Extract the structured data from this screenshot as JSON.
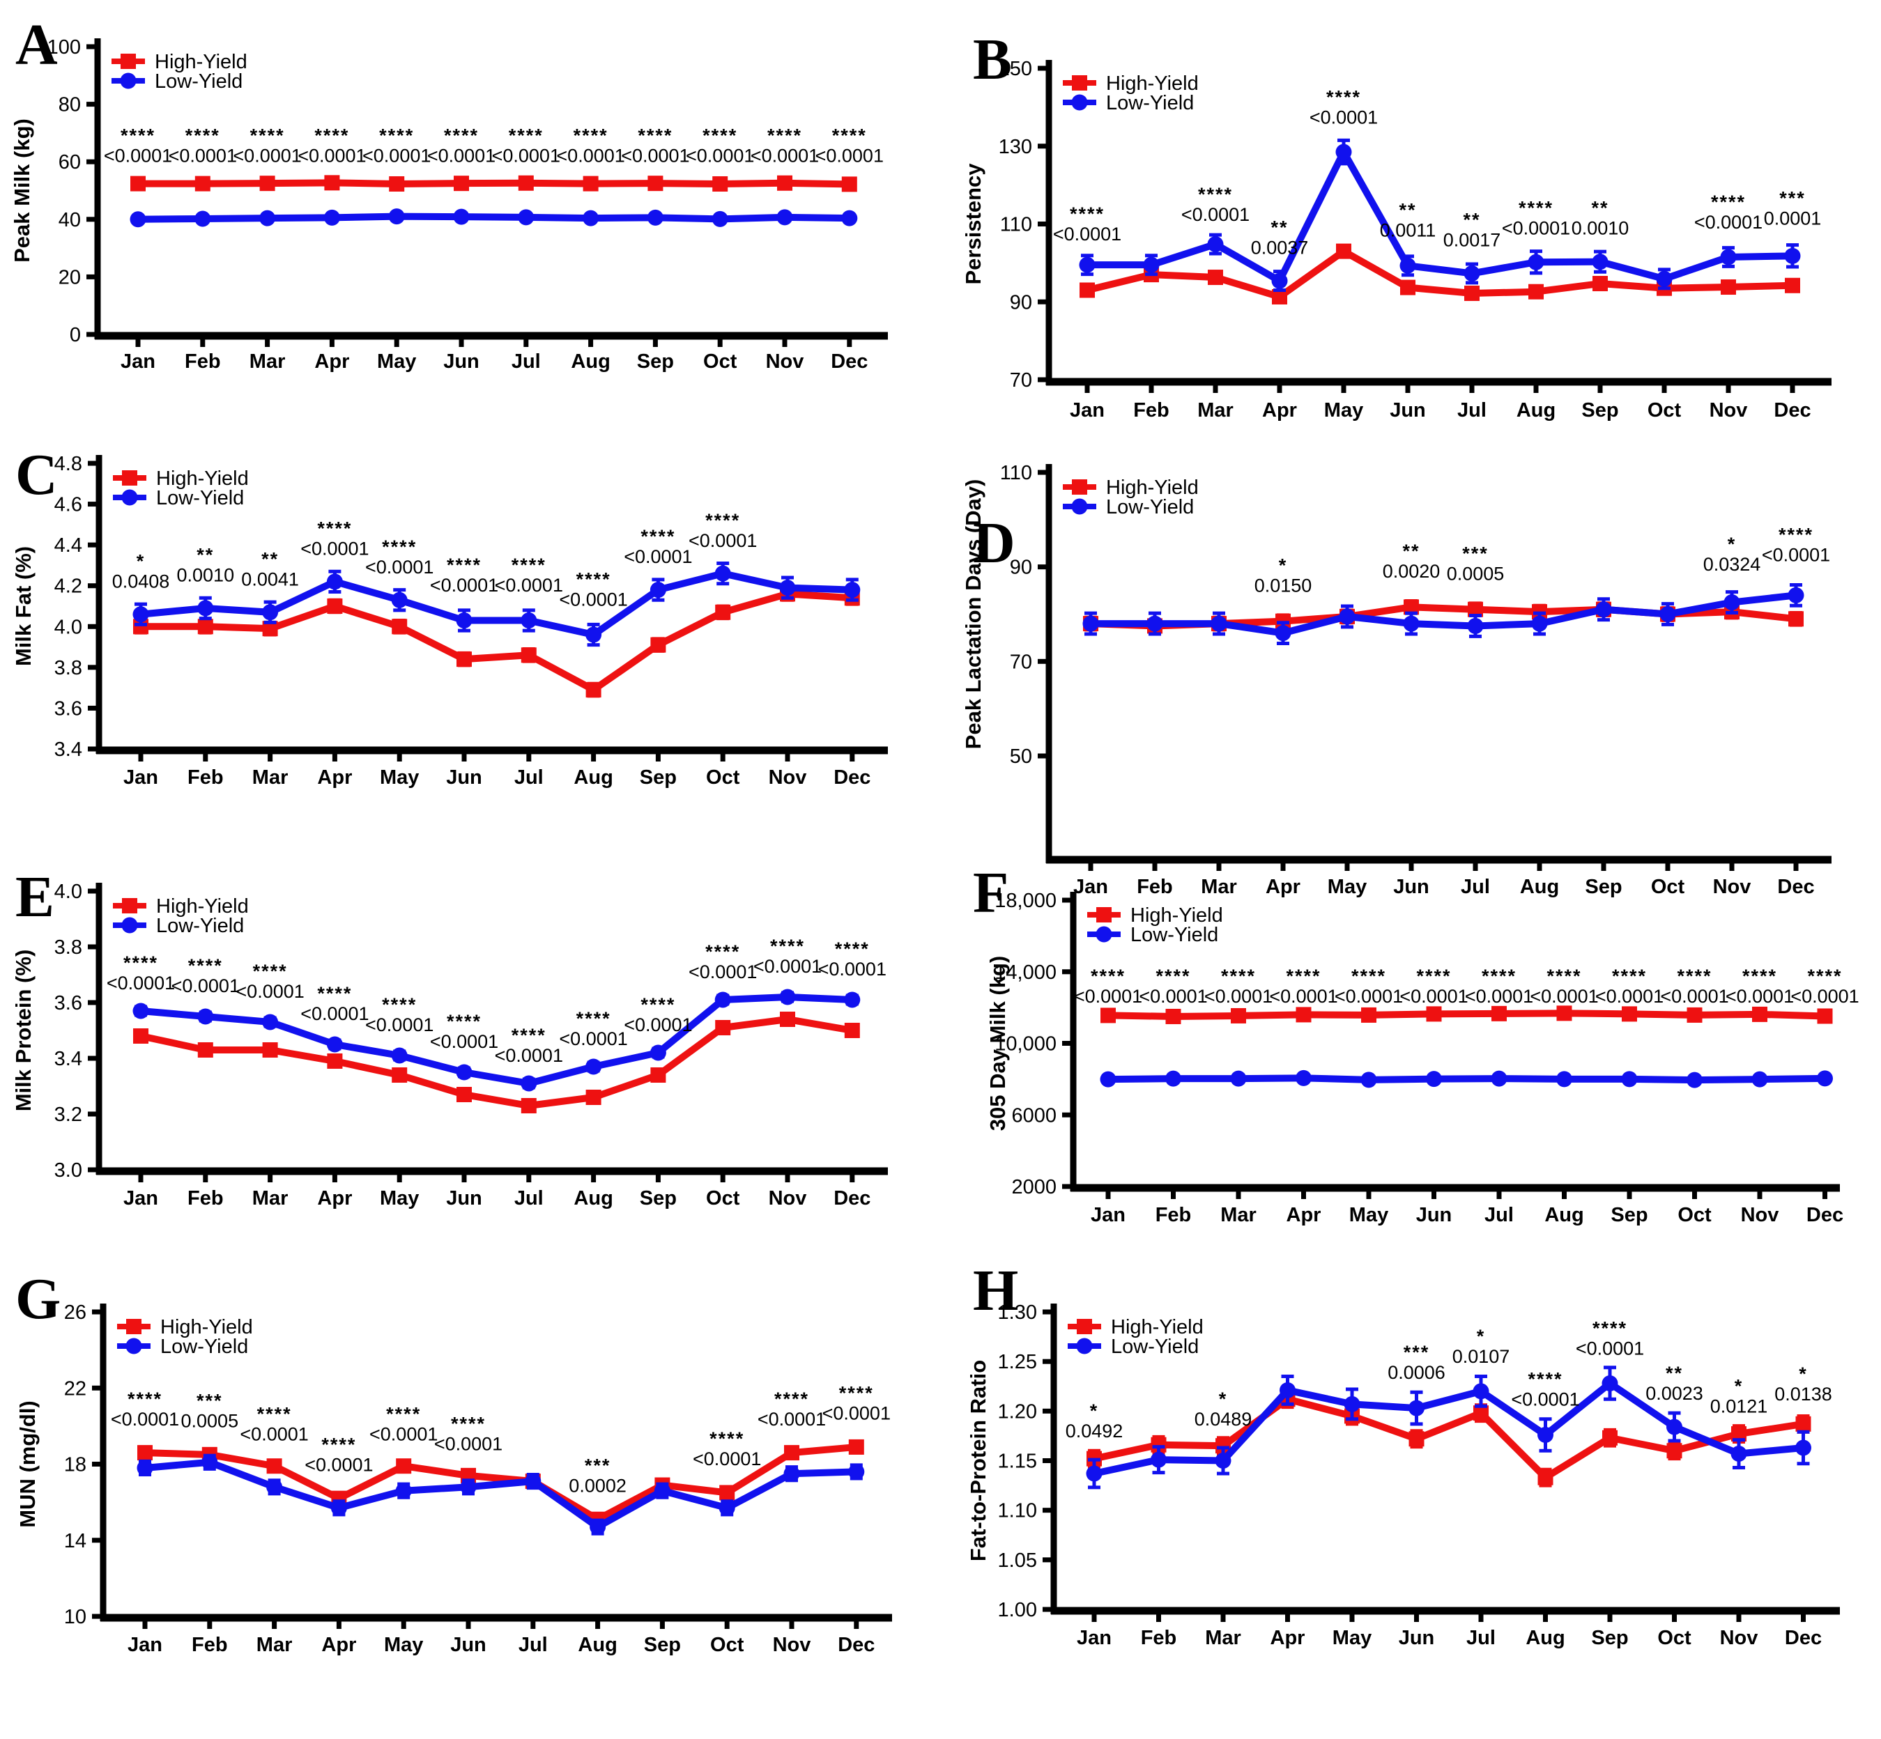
{
  "figure": {
    "legend": {
      "high_label": "High-Yield",
      "low_label": "Low-Yield"
    },
    "colors": {
      "high": "#ee1111",
      "low": "#1111ee",
      "axis": "#000000"
    },
    "months": [
      "Jan",
      "Feb",
      "Mar",
      "Apr",
      "May",
      "Jun",
      "Jul",
      "Aug",
      "Sep",
      "Oct",
      "Nov",
      "Dec"
    ]
  },
  "chart_data": [
    {
      "id": "A",
      "type": "line",
      "ylabel": "Peak Milk (kg)",
      "ylim": [
        0,
        100
      ],
      "yticks": [
        0,
        20,
        40,
        60,
        80,
        100
      ],
      "ytick_labels": [
        "0",
        "20",
        "40",
        "60",
        "80",
        "100"
      ],
      "series": [
        {
          "name": "High-Yield",
          "color": "high",
          "marker": "square",
          "values": [
            52.4,
            52.4,
            52.5,
            52.7,
            52.3,
            52.5,
            52.6,
            52.4,
            52.5,
            52.3,
            52.6,
            52.2
          ],
          "err": 0.8
        },
        {
          "name": "Low-Yield",
          "color": "low",
          "marker": "circle",
          "values": [
            40.0,
            40.2,
            40.4,
            40.6,
            41.0,
            40.9,
            40.7,
            40.4,
            40.6,
            40.1,
            40.7,
            40.4
          ],
          "err": 0.8
        }
      ],
      "annotations": [
        {
          "month": "Jan",
          "stars": "****",
          "p": "<0.0001",
          "y": 67
        },
        {
          "month": "Feb",
          "stars": "****",
          "p": "<0.0001",
          "y": 67
        },
        {
          "month": "Mar",
          "stars": "****",
          "p": "<0.0001",
          "y": 67
        },
        {
          "month": "Apr",
          "stars": "****",
          "p": "<0.0001",
          "y": 67
        },
        {
          "month": "May",
          "stars": "****",
          "p": "<0.0001",
          "y": 67
        },
        {
          "month": "Jun",
          "stars": "****",
          "p": "<0.0001",
          "y": 67
        },
        {
          "month": "Jul",
          "stars": "****",
          "p": "<0.0001",
          "y": 67
        },
        {
          "month": "Aug",
          "stars": "****",
          "p": "<0.0001",
          "y": 67
        },
        {
          "month": "Sep",
          "stars": "****",
          "p": "<0.0001",
          "y": 67
        },
        {
          "month": "Oct",
          "stars": "****",
          "p": "<0.0001",
          "y": 67
        },
        {
          "month": "Nov",
          "stars": "****",
          "p": "<0.0001",
          "y": 67
        },
        {
          "month": "Dec",
          "stars": "****",
          "p": "<0.0001",
          "y": 67
        }
      ]
    },
    {
      "id": "B",
      "type": "line",
      "ylabel": "Persistency",
      "ylim": [
        70,
        150
      ],
      "yticks": [
        70,
        90,
        110,
        130,
        150
      ],
      "ytick_labels": [
        "70",
        "90",
        "110",
        "130",
        "150"
      ],
      "series": [
        {
          "name": "High-Yield",
          "color": "high",
          "marker": "square",
          "values": [
            93,
            97,
            96.3,
            91.3,
            103,
            93.7,
            92.2,
            92.6,
            94.7,
            93.5,
            93.8,
            94.2
          ],
          "err": 1.4
        },
        {
          "name": "Low-Yield",
          "color": "low",
          "marker": "circle",
          "values": [
            99.5,
            99.5,
            104.8,
            95.4,
            128.5,
            99.3,
            97.3,
            100.2,
            100.3,
            95.9,
            101.5,
            101.8
          ],
          "err": [
            2.4,
            2.4,
            2.4,
            2.4,
            3.0,
            2.4,
            2.4,
            2.8,
            2.6,
            2.4,
            2.4,
            2.8
          ]
        }
      ],
      "annotations": [
        {
          "month": "Jan",
          "stars": "****",
          "p": "<0.0001",
          "y": 111
        },
        {
          "month": "Mar",
          "stars": "****",
          "p": "<0.0001",
          "y": 116
        },
        {
          "month": "Apr",
          "stars": "**",
          "p": "0.0037",
          "y": 107.5
        },
        {
          "month": "May",
          "stars": "****",
          "p": "<0.0001",
          "y": 141
        },
        {
          "month": "Jun",
          "stars": "**",
          "p": "0.0011",
          "y": 112
        },
        {
          "month": "Jul",
          "stars": "**",
          "p": "0.0017",
          "y": 109.5
        },
        {
          "month": "Aug",
          "stars": "****",
          "p": "<0.0001",
          "y": 112.5
        },
        {
          "month": "Sep",
          "stars": "**",
          "p": "0.0010",
          "y": 112.5
        },
        {
          "month": "Nov",
          "stars": "****",
          "p": "<0.0001",
          "y": 114
        },
        {
          "month": "Dec",
          "stars": "***",
          "p": "0.0001",
          "y": 115
        }
      ]
    },
    {
      "id": "C",
      "type": "line",
      "ylabel": "Milk Fat (%)",
      "ylim": [
        3.4,
        4.8
      ],
      "yticks": [
        3.4,
        3.6,
        3.8,
        4.0,
        4.2,
        4.4,
        4.6,
        4.8
      ],
      "ytick_labels": [
        "3.4",
        "3.6",
        "3.8",
        "4.0",
        "4.2",
        "4.4",
        "4.6",
        "4.8"
      ],
      "series": [
        {
          "name": "High-Yield",
          "color": "high",
          "marker": "square",
          "values": [
            4.0,
            4.0,
            3.99,
            4.1,
            4.0,
            3.84,
            3.86,
            3.69,
            3.91,
            4.07,
            4.16,
            4.14
          ],
          "err": 0.03
        },
        {
          "name": "Low-Yield",
          "color": "low",
          "marker": "circle",
          "values": [
            4.06,
            4.09,
            4.07,
            4.22,
            4.13,
            4.03,
            4.03,
            3.96,
            4.18,
            4.26,
            4.19,
            4.18
          ],
          "err": 0.05
        }
      ],
      "annotations": [
        {
          "month": "Jan",
          "stars": "*",
          "p": "0.0408",
          "y": 4.29
        },
        {
          "month": "Feb",
          "stars": "**",
          "p": "0.0010",
          "y": 4.32
        },
        {
          "month": "Mar",
          "stars": "**",
          "p": "0.0041",
          "y": 4.3
        },
        {
          "month": "Apr",
          "stars": "****",
          "p": "<0.0001",
          "y": 4.45
        },
        {
          "month": "May",
          "stars": "****",
          "p": "<0.0001",
          "y": 4.36
        },
        {
          "month": "Jun",
          "stars": "****",
          "p": "<0.0001",
          "y": 4.27
        },
        {
          "month": "Jul",
          "stars": "****",
          "p": "<0.0001",
          "y": 4.27
        },
        {
          "month": "Aug",
          "stars": "****",
          "p": "<0.0001",
          "y": 4.2
        },
        {
          "month": "Sep",
          "stars": "****",
          "p": "<0.0001",
          "y": 4.41
        },
        {
          "month": "Oct",
          "stars": "****",
          "p": "<0.0001",
          "y": 4.49
        }
      ]
    },
    {
      "id": "D",
      "type": "line",
      "ylabel": "Peak Lactation Days (Day)",
      "ylim": [
        50,
        110
      ],
      "yticks": [
        50,
        70,
        90,
        110
      ],
      "ytick_labels": [
        "50",
        "70",
        "90",
        "110"
      ],
      "series": [
        {
          "name": "High-Yield",
          "color": "high",
          "marker": "square",
          "values": [
            78,
            77.5,
            78,
            78.5,
            79.5,
            81.5,
            81,
            80.5,
            81,
            80,
            80.5,
            79
          ],
          "err": 1.3
        },
        {
          "name": "Low-Yield",
          "color": "low",
          "marker": "circle",
          "values": [
            78,
            78,
            78,
            76,
            79.5,
            78,
            77.5,
            78,
            81,
            80,
            82.5,
            84
          ],
          "err": 2.2
        }
      ],
      "annotations": [
        {
          "month": "Apr",
          "stars": "*",
          "p": "0.0150",
          "y": 89
        },
        {
          "month": "Jun",
          "stars": "**",
          "p": "0.0020",
          "y": 92
        },
        {
          "month": "Jul",
          "stars": "***",
          "p": "0.0005",
          "y": 91.5
        },
        {
          "month": "Nov",
          "stars": "*",
          "p": "0.0324",
          "y": 93.5
        },
        {
          "month": "Dec",
          "stars": "****",
          "p": "<0.0001",
          "y": 95.5
        }
      ]
    },
    {
      "id": "E",
      "type": "line",
      "ylabel": "Milk Protein (%)",
      "ylim": [
        3.0,
        4.0
      ],
      "yticks": [
        3.0,
        3.2,
        3.4,
        3.6,
        3.8,
        4.0
      ],
      "ytick_labels": [
        "3.0",
        "3.2",
        "3.4",
        "3.6",
        "3.8",
        "4.0"
      ],
      "series": [
        {
          "name": "High-Yield",
          "color": "high",
          "marker": "square",
          "values": [
            3.48,
            3.43,
            3.43,
            3.39,
            3.34,
            3.27,
            3.23,
            3.26,
            3.34,
            3.51,
            3.54,
            3.5
          ],
          "err": 0.013
        },
        {
          "name": "Low-Yield",
          "color": "low",
          "marker": "circle",
          "values": [
            3.57,
            3.55,
            3.53,
            3.45,
            3.41,
            3.35,
            3.31,
            3.37,
            3.42,
            3.61,
            3.62,
            3.61
          ],
          "err": 0.015
        }
      ],
      "annotations": [
        {
          "month": "Jan",
          "stars": "****",
          "p": "<0.0001",
          "y": 3.72
        },
        {
          "month": "Feb",
          "stars": "****",
          "p": "<0.0001",
          "y": 3.71
        },
        {
          "month": "Mar",
          "stars": "****",
          "p": "<0.0001",
          "y": 3.69
        },
        {
          "month": "Apr",
          "stars": "****",
          "p": "<0.0001",
          "y": 3.61
        },
        {
          "month": "May",
          "stars": "****",
          "p": "<0.0001",
          "y": 3.57
        },
        {
          "month": "Jun",
          "stars": "****",
          "p": "<0.0001",
          "y": 3.51
        },
        {
          "month": "Jul",
          "stars": "****",
          "p": "<0.0001",
          "y": 3.46
        },
        {
          "month": "Aug",
          "stars": "****",
          "p": "<0.0001",
          "y": 3.52
        },
        {
          "month": "Sep",
          "stars": "****",
          "p": "<0.0001",
          "y": 3.57
        },
        {
          "month": "Oct",
          "stars": "****",
          "p": "<0.0001",
          "y": 3.76
        },
        {
          "month": "Nov",
          "stars": "****",
          "p": "<0.0001",
          "y": 3.78
        },
        {
          "month": "Dec",
          "stars": "****",
          "p": "<0.0001",
          "y": 3.77
        }
      ]
    },
    {
      "id": "F",
      "type": "line",
      "ylabel": "305 Day Milk (kg)",
      "ylim": [
        2000,
        18000
      ],
      "yticks": [
        2000,
        6000,
        10000,
        14000,
        18000
      ],
      "ytick_labels": [
        "2000",
        "6000",
        "10,000",
        "14,000",
        "18,000"
      ],
      "series": [
        {
          "name": "High-Yield",
          "color": "high",
          "marker": "square",
          "values": [
            11560,
            11500,
            11540,
            11600,
            11580,
            11640,
            11660,
            11680,
            11640,
            11580,
            11620,
            11520
          ],
          "err": 170
        },
        {
          "name": "Low-Yield",
          "color": "low",
          "marker": "circle",
          "values": [
            7990,
            8030,
            8030,
            8060,
            7960,
            8010,
            8030,
            8000,
            8000,
            7950,
            7990,
            8040
          ],
          "err": 170
        }
      ],
      "annotations": [
        {
          "month": "Jan",
          "stars": "****",
          "p": "<0.0001",
          "y": 13400
        },
        {
          "month": "Feb",
          "stars": "****",
          "p": "<0.0001",
          "y": 13400
        },
        {
          "month": "Mar",
          "stars": "****",
          "p": "<0.0001",
          "y": 13400
        },
        {
          "month": "Apr",
          "stars": "****",
          "p": "<0.0001",
          "y": 13400
        },
        {
          "month": "May",
          "stars": "****",
          "p": "<0.0001",
          "y": 13400
        },
        {
          "month": "Jun",
          "stars": "****",
          "p": "<0.0001",
          "y": 13400
        },
        {
          "month": "Jul",
          "stars": "****",
          "p": "<0.0001",
          "y": 13400
        },
        {
          "month": "Aug",
          "stars": "****",
          "p": "<0.0001",
          "y": 13400
        },
        {
          "month": "Sep",
          "stars": "****",
          "p": "<0.0001",
          "y": 13400
        },
        {
          "month": "Oct",
          "stars": "****",
          "p": "<0.0001",
          "y": 13400
        },
        {
          "month": "Nov",
          "stars": "****",
          "p": "<0.0001",
          "y": 13400
        },
        {
          "month": "Dec",
          "stars": "****",
          "p": "<0.0001",
          "y": 13400
        }
      ]
    },
    {
      "id": "G",
      "type": "line",
      "ylabel": "MUN (mg/dl)",
      "ylim": [
        10,
        26
      ],
      "yticks": [
        10,
        14,
        18,
        22,
        26
      ],
      "ytick_labels": [
        "10",
        "14",
        "18",
        "22",
        "26"
      ],
      "series": [
        {
          "name": "High-Yield",
          "color": "high",
          "marker": "square",
          "values": [
            18.6,
            18.5,
            17.9,
            16.2,
            17.9,
            17.4,
            17.1,
            15.1,
            16.9,
            16.5,
            18.6,
            18.9
          ],
          "err": 0.3
        },
        {
          "name": "Low-Yield",
          "color": "low",
          "marker": "circle",
          "values": [
            17.8,
            18.1,
            16.8,
            15.7,
            16.6,
            16.8,
            17.1,
            14.7,
            16.6,
            15.7,
            17.5,
            17.6
          ],
          "err": 0.35
        }
      ],
      "annotations": [
        {
          "month": "Jan",
          "stars": "****",
          "p": "<0.0001",
          "y": 21.1
        },
        {
          "month": "Feb",
          "stars": "***",
          "p": "0.0005",
          "y": 21.0
        },
        {
          "month": "Mar",
          "stars": "****",
          "p": "<0.0001",
          "y": 20.3
        },
        {
          "month": "Apr",
          "stars": "****",
          "p": "<0.0001",
          "y": 18.7
        },
        {
          "month": "May",
          "stars": "****",
          "p": "<0.0001",
          "y": 20.3
        },
        {
          "month": "Jun",
          "stars": "****",
          "p": "<0.0001",
          "y": 19.8
        },
        {
          "month": "Aug",
          "stars": "***",
          "p": "0.0002",
          "y": 17.6
        },
        {
          "month": "Oct",
          "stars": "****",
          "p": "<0.0001",
          "y": 19.0
        },
        {
          "month": "Nov",
          "stars": "****",
          "p": "<0.0001",
          "y": 21.1
        },
        {
          "month": "Dec",
          "stars": "****",
          "p": "<0.0001",
          "y": 21.4
        }
      ]
    },
    {
      "id": "H",
      "type": "line",
      "ylabel": "Fat-to-Protein Ratio",
      "ylim": [
        1.0,
        1.3
      ],
      "yticks": [
        1.0,
        1.05,
        1.1,
        1.15,
        1.2,
        1.25,
        1.3
      ],
      "ytick_labels": [
        "1.00",
        "1.05",
        "1.10",
        "1.15",
        "1.20",
        "1.25",
        "1.30"
      ],
      "series": [
        {
          "name": "High-Yield",
          "color": "high",
          "marker": "square",
          "values": [
            1.152,
            1.166,
            1.165,
            1.212,
            1.195,
            1.172,
            1.198,
            1.133,
            1.173,
            1.16,
            1.177,
            1.187
          ],
          "err": 0.008
        },
        {
          "name": "Low-Yield",
          "color": "low",
          "marker": "circle",
          "values": [
            1.137,
            1.151,
            1.15,
            1.221,
            1.207,
            1.203,
            1.22,
            1.176,
            1.228,
            1.184,
            1.157,
            1.163
          ],
          "err": [
            0.014,
            0.013,
            0.013,
            0.014,
            0.015,
            0.016,
            0.015,
            0.016,
            0.016,
            0.014,
            0.014,
            0.016
          ]
        }
      ],
      "annotations": [
        {
          "month": "Jan",
          "stars": "*",
          "p": "0.0492",
          "y": 1.194
        },
        {
          "month": "Mar",
          "stars": "*",
          "p": "0.0489",
          "y": 1.206
        },
        {
          "month": "Jun",
          "stars": "***",
          "p": "0.0006",
          "y": 1.253
        },
        {
          "month": "Jul",
          "stars": "*",
          "p": "0.0107",
          "y": 1.269
        },
        {
          "month": "Aug",
          "stars": "****",
          "p": "<0.0001",
          "y": 1.226
        },
        {
          "month": "Sep",
          "stars": "****",
          "p": "<0.0001",
          "y": 1.277
        },
        {
          "month": "Oct",
          "stars": "**",
          "p": "0.0023",
          "y": 1.232
        },
        {
          "month": "Nov",
          "stars": "*",
          "p": "0.0121",
          "y": 1.219
        },
        {
          "month": "Dec",
          "stars": "*",
          "p": "0.0138",
          "y": 1.231
        }
      ]
    }
  ]
}
